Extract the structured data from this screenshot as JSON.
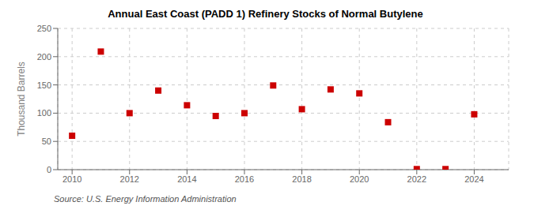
{
  "chart_data": {
    "type": "scatter",
    "title": "Annual East Coast (PADD 1) Refinery Stocks of Normal Butylene",
    "ylabel": "Thousand Barrels",
    "annotation": "Source: U.S. Energy Information Administration",
    "x": [
      2010,
      2011,
      2012,
      2013,
      2014,
      2015,
      2016,
      2017,
      2018,
      2019,
      2020,
      2021,
      2022,
      2023,
      2024
    ],
    "values": [
      60,
      209,
      100,
      140,
      114,
      95,
      100,
      149,
      107,
      142,
      135,
      84,
      1,
      1,
      98
    ],
    "color": "#cc0000",
    "marker": "square",
    "xlim": [
      2009.5,
      2025.2
    ],
    "ylim": [
      0,
      250
    ],
    "xticks": [
      2010,
      2012,
      2014,
      2016,
      2018,
      2020,
      2022,
      2024
    ],
    "yticks": [
      0,
      50,
      100,
      150,
      200,
      250
    ],
    "grid": true
  }
}
